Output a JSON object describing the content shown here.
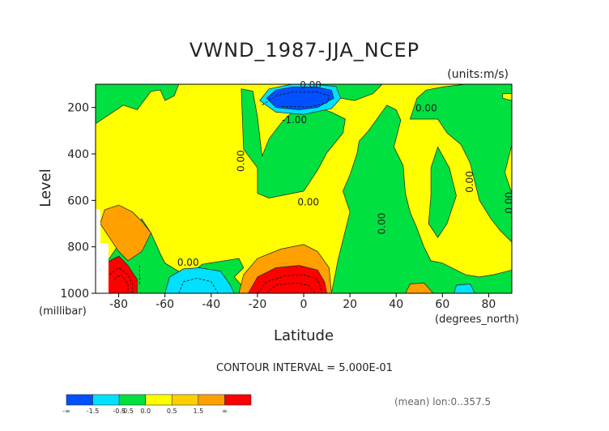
{
  "chart_data": {
    "type": "heatmap",
    "title": "VWND_1987-JJA_NCEP",
    "units": "(units:m/s)",
    "xlabel": "Latitude",
    "ylabel": "Level",
    "x_unit": "(degrees_north)",
    "y_unit": "(millibar)",
    "xlim": [
      -90,
      90
    ],
    "ylim": [
      1000,
      100
    ],
    "x_ticks": [
      {
        "value": -80,
        "label": "-80"
      },
      {
        "value": -60,
        "label": "-60"
      },
      {
        "value": -40,
        "label": "-40"
      },
      {
        "value": -20,
        "label": "-20"
      },
      {
        "value": 0,
        "label": "0"
      },
      {
        "value": 20,
        "label": "20"
      },
      {
        "value": 40,
        "label": "40"
      },
      {
        "value": 60,
        "label": "60"
      },
      {
        "value": 80,
        "label": "80"
      }
    ],
    "y_ticks": [
      {
        "value": 200,
        "label": "200"
      },
      {
        "value": 400,
        "label": "400"
      },
      {
        "value": 600,
        "label": "600"
      },
      {
        "value": 800,
        "label": "800"
      },
      {
        "value": 1000,
        "label": "1000"
      }
    ],
    "contour_labels": [
      {
        "text": "0.00",
        "lat": 3,
        "lev": 105,
        "rotate": 0
      },
      {
        "text": "0.00",
        "lat": 53,
        "lev": 205,
        "rotate": 0
      },
      {
        "text": "-1.00",
        "lat": -4,
        "lev": 255,
        "rotate": 0
      },
      {
        "text": "0.00",
        "lat": -27,
        "lev": 430,
        "rotate": -90
      },
      {
        "text": "0.00",
        "lat": 2,
        "lev": 610,
        "rotate": 0
      },
      {
        "text": "0.00",
        "lat": 34,
        "lev": 700,
        "rotate": -90
      },
      {
        "text": "0.00",
        "lat": -50,
        "lev": 870,
        "rotate": 0
      },
      {
        "text": "0.00",
        "lat": 72,
        "lev": 520,
        "rotate": -90
      },
      {
        "text": "0.00",
        "lat": 89,
        "lev": 610,
        "rotate": -90
      }
    ],
    "regions": [
      {
        "level": "neg",
        "color": "#00e040",
        "points": [
          [
            -90,
            100
          ],
          [
            -90,
            270
          ],
          [
            -78,
            190
          ],
          [
            -72,
            210
          ],
          [
            -66,
            130
          ],
          [
            -62,
            125
          ],
          [
            -60,
            170
          ],
          [
            -56,
            150
          ],
          [
            -54,
            100
          ]
        ]
      },
      {
        "level": "neg",
        "color": "#00e040",
        "points": [
          [
            -27,
            120
          ],
          [
            -26,
            380
          ],
          [
            -20,
            460
          ],
          [
            -20,
            570
          ],
          [
            -15,
            590
          ],
          [
            0,
            560
          ],
          [
            6,
            470
          ],
          [
            10,
            395
          ],
          [
            17,
            310
          ],
          [
            18,
            250
          ],
          [
            12,
            220
          ],
          [
            6,
            200
          ],
          [
            3,
            190
          ],
          [
            -4,
            210
          ],
          [
            -10,
            270
          ],
          [
            -15,
            335
          ],
          [
            -18,
            410
          ],
          [
            -20,
            240
          ],
          [
            -22,
            130
          ]
        ]
      },
      {
        "level": "neg",
        "color": "#00e040",
        "points": [
          [
            -84,
            850
          ],
          [
            -80,
            790
          ],
          [
            -75,
            720
          ],
          [
            -70,
            680
          ],
          [
            -66,
            740
          ],
          [
            -62,
            830
          ],
          [
            -60,
            870
          ],
          [
            -50,
            930
          ],
          [
            -44,
            875
          ],
          [
            -28,
            850
          ],
          [
            -26,
            890
          ],
          [
            -30,
            930
          ],
          [
            -24,
            1000
          ],
          [
            -90,
            1000
          ],
          [
            -90,
            870
          ]
        ]
      },
      {
        "level": "neg",
        "color": "#00e040",
        "points": [
          [
            20,
            650
          ],
          [
            17,
            560
          ],
          [
            20,
            490
          ],
          [
            23,
            400
          ],
          [
            24,
            345
          ],
          [
            28,
            300
          ],
          [
            36,
            190
          ],
          [
            40,
            210
          ],
          [
            42,
            255
          ],
          [
            39,
            370
          ],
          [
            43,
            450
          ],
          [
            44,
            570
          ],
          [
            46,
            650
          ],
          [
            49,
            720
          ],
          [
            52,
            800
          ],
          [
            55,
            860
          ],
          [
            60,
            870
          ],
          [
            65,
            895
          ],
          [
            70,
            920
          ],
          [
            76,
            930
          ],
          [
            82,
            920
          ],
          [
            90,
            900
          ],
          [
            90,
            1000
          ],
          [
            12,
            1000
          ],
          [
            15,
            850
          ]
        ]
      },
      {
        "level": "neg",
        "color": "#00e040",
        "points": [
          [
            46,
            250
          ],
          [
            49,
            160
          ],
          [
            53,
            125
          ],
          [
            60,
            112
          ],
          [
            70,
            100
          ],
          [
            90,
            100
          ],
          [
            90,
            140
          ],
          [
            86,
            140
          ],
          [
            86,
            160
          ],
          [
            90,
            170
          ],
          [
            90,
            360
          ],
          [
            87,
            480
          ],
          [
            90,
            570
          ],
          [
            90,
            780
          ],
          [
            85,
            730
          ],
          [
            81,
            680
          ],
          [
            76,
            600
          ],
          [
            74,
            520
          ],
          [
            72,
            440
          ],
          [
            68,
            360
          ],
          [
            62,
            310
          ],
          [
            58,
            250
          ],
          [
            53,
            250
          ]
        ]
      },
      {
        "level": "neg",
        "color": "#00e040",
        "points": [
          [
            58,
            370
          ],
          [
            63,
            460
          ],
          [
            66,
            580
          ],
          [
            62,
            700
          ],
          [
            58,
            760
          ],
          [
            54,
            700
          ],
          [
            55,
            580
          ],
          [
            55,
            460
          ]
        ]
      },
      {
        "level": "neg",
        "color": "#00e040",
        "points": [
          [
            3,
            100
          ],
          [
            10,
            150
          ],
          [
            22,
            170
          ],
          [
            30,
            140
          ],
          [
            34,
            100
          ]
        ]
      },
      {
        "level": "neg1",
        "color": "#00e0ff",
        "points": [
          [
            -19,
            170
          ],
          [
            -15,
            120
          ],
          [
            -5,
            100
          ],
          [
            5,
            100
          ],
          [
            14,
            110
          ],
          [
            16,
            160
          ],
          [
            12,
            205
          ],
          [
            0,
            230
          ],
          [
            -12,
            220
          ]
        ]
      },
      {
        "level": "neg15",
        "color": "#0050ff",
        "points": [
          [
            -16,
            160
          ],
          [
            -12,
            125
          ],
          [
            -5,
            112
          ],
          [
            5,
            112
          ],
          [
            12,
            125
          ],
          [
            13,
            160
          ],
          [
            6,
            200
          ],
          [
            -2,
            210
          ],
          [
            -12,
            200
          ]
        ]
      },
      {
        "level": "neg1",
        "color": "#00e0ff",
        "points": [
          [
            -60,
            1000
          ],
          [
            -58,
            930
          ],
          [
            -52,
            895
          ],
          [
            -45,
            890
          ],
          [
            -36,
            905
          ],
          [
            -32,
            960
          ],
          [
            -30,
            1000
          ]
        ]
      },
      {
        "level": "neg1",
        "color": "#00e0ff",
        "points": [
          [
            65,
            1000
          ],
          [
            66,
            965
          ],
          [
            72,
            960
          ],
          [
            74,
            1000
          ]
        ]
      },
      {
        "level": "pos1",
        "color": "#ffa000",
        "points": [
          [
            -86,
            640
          ],
          [
            -80,
            620
          ],
          [
            -74,
            650
          ],
          [
            -70,
            690
          ],
          [
            -66,
            740
          ],
          [
            -70,
            820
          ],
          [
            -76,
            860
          ],
          [
            -80,
            820
          ],
          [
            -84,
            760
          ],
          [
            -88,
            700
          ]
        ]
      },
      {
        "level": "pos1",
        "color": "#ffa000",
        "points": [
          [
            -28,
            1000
          ],
          [
            -26,
            920
          ],
          [
            -20,
            850
          ],
          [
            -10,
            810
          ],
          [
            0,
            790
          ],
          [
            6,
            820
          ],
          [
            11,
            890
          ],
          [
            12,
            1000
          ]
        ]
      },
      {
        "level": "pos1",
        "color": "#ffa000",
        "points": [
          [
            44,
            1000
          ],
          [
            46,
            960
          ],
          [
            52,
            955
          ],
          [
            56,
            1000
          ]
        ]
      },
      {
        "level": "pos15",
        "color": "#ff0000",
        "points": [
          [
            -84,
            860
          ],
          [
            -80,
            840
          ],
          [
            -76,
            880
          ],
          [
            -72,
            940
          ],
          [
            -72,
            1000
          ],
          [
            -88,
            1000
          ],
          [
            -88,
            920
          ]
        ]
      },
      {
        "level": "pos15",
        "color": "#ff0000",
        "points": [
          [
            -24,
            1000
          ],
          [
            -20,
            930
          ],
          [
            -12,
            890
          ],
          [
            -2,
            880
          ],
          [
            6,
            900
          ],
          [
            9,
            950
          ],
          [
            10,
            1000
          ]
        ]
      }
    ],
    "contour_lines": [
      [
        [
          -18,
          190
        ],
        [
          -12,
          150
        ],
        [
          -4,
          132
        ],
        [
          6,
          134
        ],
        [
          11,
          150
        ],
        [
          10,
          180
        ],
        [
          2,
          198
        ],
        [
          -10,
          195
        ]
      ],
      [
        [
          -54,
          1000
        ],
        [
          -52,
          950
        ],
        [
          -46,
          935
        ],
        [
          -40,
          950
        ],
        [
          -37,
          1000
        ]
      ],
      [
        [
          -84,
          920
        ],
        [
          -80,
          890
        ],
        [
          -76,
          920
        ],
        [
          -74,
          960
        ],
        [
          -74,
          1000
        ]
      ],
      [
        [
          -82,
          940
        ],
        [
          -79,
          920
        ],
        [
          -76,
          960
        ],
        [
          -76,
          1000
        ]
      ],
      [
        [
          -71,
          880
        ],
        [
          -71,
          960
        ]
      ],
      [
        [
          -20,
          1000
        ],
        [
          -16,
          950
        ],
        [
          -8,
          925
        ],
        [
          0,
          920
        ],
        [
          6,
          940
        ],
        [
          8,
          1000
        ]
      ],
      [
        [
          -16,
          1000
        ],
        [
          -12,
          965
        ],
        [
          -4,
          955
        ],
        [
          2,
          965
        ],
        [
          5,
          1000
        ]
      ]
    ],
    "colorbar": [
      {
        "label": "-∞",
        "color": "#0050ff"
      },
      {
        "label": "-1.5",
        "color": "#00e0ff"
      },
      {
        "label": "-0.5",
        "color": "#00e040"
      },
      {
        "label": "0.0",
        "color": "#ffff00"
      },
      {
        "label": "0.5",
        "color": "#ffd000"
      },
      {
        "label": "1.5",
        "color": "#ffa000"
      },
      {
        "label": "∞",
        "color": "#ff0000"
      }
    ],
    "colorbar_extra_label": "-0.5",
    "contour_interval": "CONTOUR INTERVAL = 5.000E-01",
    "mean_note": "(mean)  lon:0..357.5",
    "background_color": "#ffff00",
    "missing_color": "#ffffff"
  }
}
